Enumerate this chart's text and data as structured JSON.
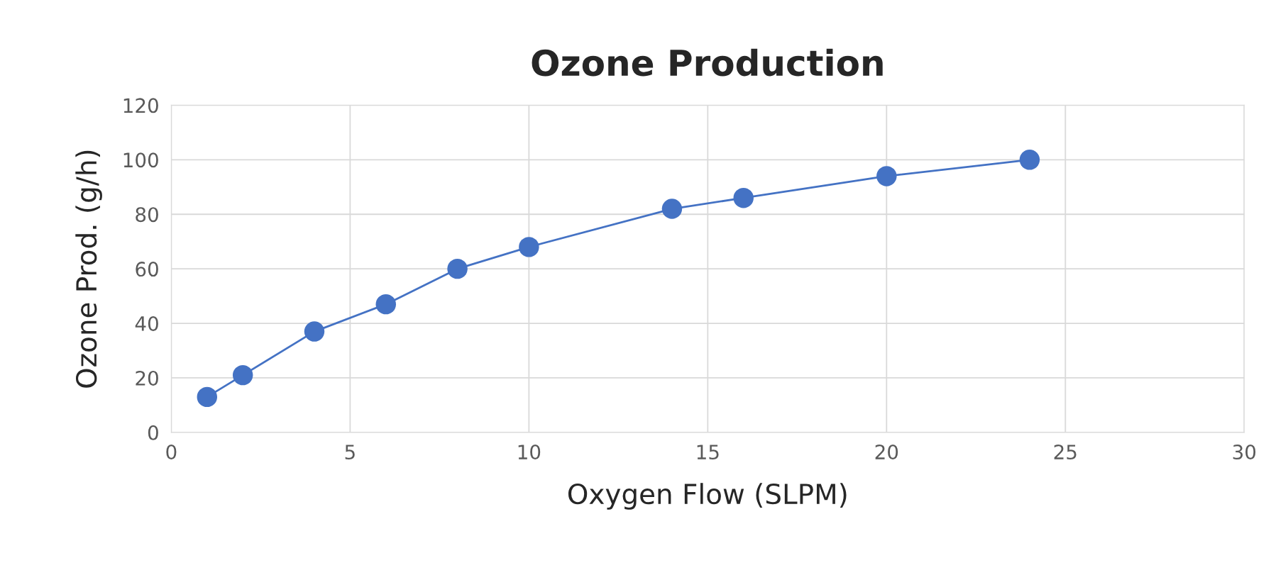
{
  "chart_data": {
    "type": "line",
    "title": "Ozone Production",
    "xlabel": "Oxygen Flow (SLPM)",
    "ylabel": "Ozone Prod. (g/h)",
    "x": [
      1,
      2,
      4,
      6,
      8,
      10,
      14,
      16,
      20,
      24
    ],
    "series": [
      {
        "color": "#4472c4",
        "values": [
          13,
          21,
          37,
          47,
          60,
          68,
          82,
          86,
          94,
          100
        ]
      }
    ],
    "xlim": [
      0,
      30
    ],
    "xticks": [
      0,
      5,
      10,
      15,
      20,
      25,
      30
    ],
    "ylim": [
      0,
      120
    ],
    "yticks": [
      0,
      20,
      40,
      60,
      80,
      100,
      120
    ],
    "grid": true,
    "marker": "circle",
    "line_style": "solid"
  }
}
